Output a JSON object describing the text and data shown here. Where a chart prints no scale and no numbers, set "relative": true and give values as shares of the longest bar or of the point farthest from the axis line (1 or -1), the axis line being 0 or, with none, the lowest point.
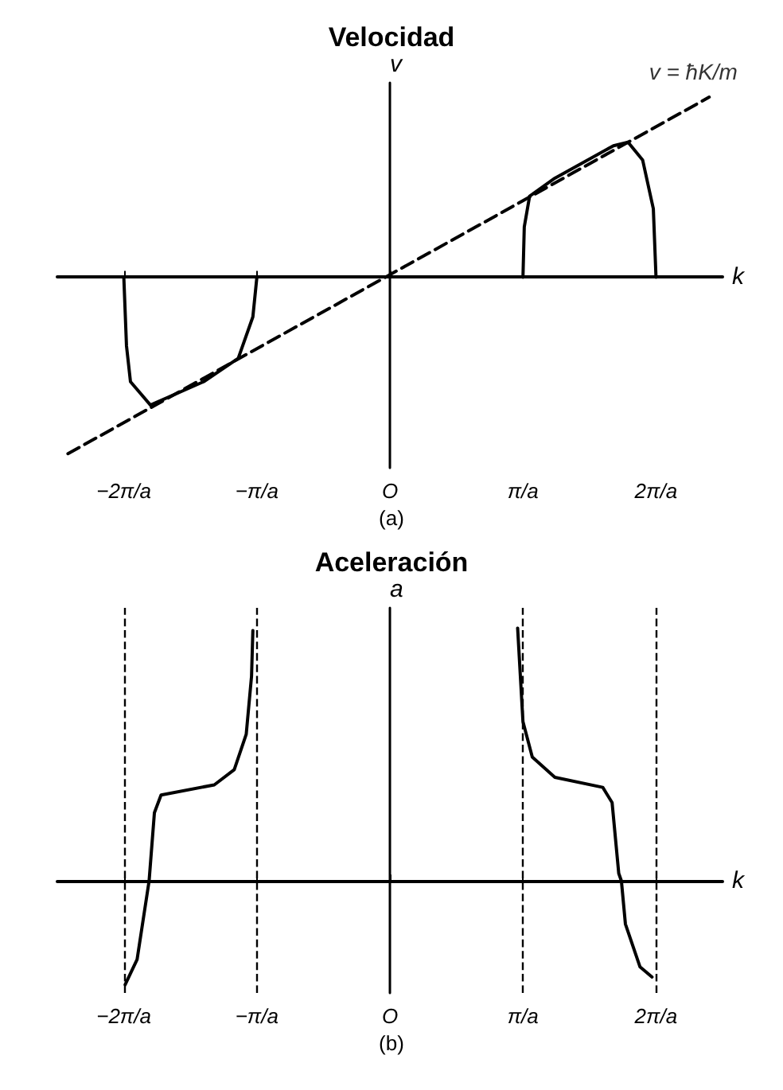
{
  "chart_data": [
    {
      "type": "line",
      "title": "Velocidad",
      "xlabel": "k",
      "ylabel": "v",
      "relative": true,
      "xlim": [
        -2.5,
        2.5
      ],
      "xticks": [
        {
          "value": -2,
          "label": "−2π/a"
        },
        {
          "value": -1,
          "label": "−π/a"
        },
        {
          "value": 0,
          "label": "O"
        },
        {
          "value": 1,
          "label": "π/a"
        },
        {
          "value": 2,
          "label": "2π/a"
        }
      ],
      "marker": "none",
      "series": [
        {
          "color": "#000000",
          "line_style": "solid",
          "x": [
            -2,
            -1.98,
            -1.95,
            -1.8,
            -1.4,
            -1.14,
            -1.03,
            -1,
            0,
            1,
            1.01,
            1.05,
            1.24,
            1.68,
            1.79,
            1.9,
            1.98,
            2
          ],
          "values": [
            0,
            -0.38,
            -0.58,
            -0.71,
            -0.58,
            -0.45,
            -0.22,
            0,
            null,
            0,
            0.28,
            0.45,
            0.55,
            0.73,
            0.75,
            0.65,
            0.38,
            0
          ]
        },
        {
          "color": "#000000",
          "line_style": "dashed",
          "x": [
            -2.42,
            2.4
          ],
          "values": [
            -0.98,
            1
          ]
        }
      ],
      "annotations": [
        {
          "text": "v = ħK/m",
          "x": 2.4,
          "y": 1
        },
        "(a)"
      ]
    },
    {
      "type": "line",
      "title": "Aceleración",
      "xlabel": "k",
      "ylabel": "a",
      "relative": true,
      "xlim": [
        -2.5,
        2.5
      ],
      "xticks": [
        {
          "value": -2,
          "label": "−2π/a"
        },
        {
          "value": -1,
          "label": "−π/a"
        },
        {
          "value": 0,
          "label": "O"
        },
        {
          "value": 1,
          "label": "π/a"
        },
        {
          "value": 2,
          "label": "2π/a"
        }
      ],
      "marker": "none",
      "series": [
        {
          "color": "#000000",
          "line_style": "solid",
          "x": [
            -1.99,
            -1.9,
            -1.81,
            -1.77,
            -1.72,
            -1.32,
            -1.17,
            -1.08,
            -1.04,
            -1.03,
            0,
            0.96,
            1,
            1.07,
            1.24,
            1.6,
            1.67,
            1.72,
            1.74,
            1.77,
            1.88,
            1.97
          ],
          "values": [
            -0.41,
            -0.31,
            0,
            0.27,
            0.34,
            0.38,
            0.44,
            0.58,
            0.81,
            0.99,
            null,
            1,
            0.63,
            0.49,
            0.41,
            0.37,
            0.31,
            0.03,
            0,
            -0.17,
            -0.34,
            -0.38
          ]
        }
      ],
      "ref_lines": [
        {
          "axis": "x",
          "value": -2,
          "line_style": "dashed",
          "color": "#000000"
        },
        {
          "axis": "x",
          "value": -1,
          "line_style": "dashed",
          "color": "#000000"
        },
        {
          "axis": "x",
          "value": 1,
          "line_style": "dashed",
          "color": "#000000"
        },
        {
          "axis": "x",
          "value": 2,
          "line_style": "dashed",
          "color": "#000000"
        }
      ],
      "annotations": [
        "(b)"
      ]
    }
  ]
}
